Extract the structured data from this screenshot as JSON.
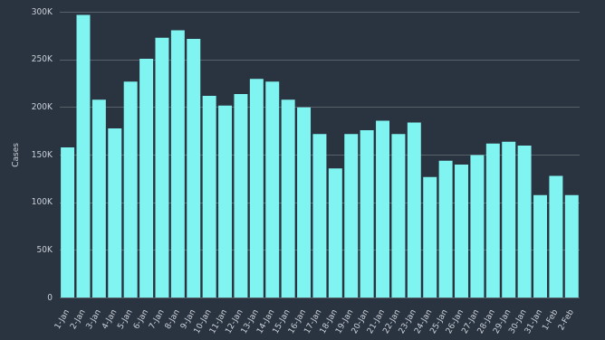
{
  "chart_data": {
    "type": "bar",
    "ylabel": "Cases",
    "categories": [
      "1-Jan",
      "2-Jan",
      "3-Jan",
      "4-Jan",
      "5-Jan",
      "6-Jan",
      "7-Jan",
      "8-Jan",
      "9-Jan",
      "10-Jan",
      "11-Jan",
      "12-Jan",
      "13-Jan",
      "14-Jan",
      "15-Jan",
      "16-Jan",
      "17-Jan",
      "18-Jan",
      "19-Jan",
      "20-Jan",
      "21-Jan",
      "22-Jan",
      "23-Jan",
      "24-Jan",
      "25-Jan",
      "26-Jan",
      "27-Jan",
      "28-Jan",
      "29-Jan",
      "30-Jan",
      "31-Jan",
      "1-Feb",
      "2-Feb"
    ],
    "values": [
      158000,
      297000,
      208000,
      178000,
      227000,
      251000,
      273000,
      281000,
      272000,
      212000,
      202000,
      214000,
      230000,
      227000,
      208000,
      200000,
      172000,
      136000,
      172000,
      176000,
      186000,
      172000,
      184000,
      127000,
      144000,
      140000,
      150000,
      162000,
      164000,
      160000,
      108000,
      128000,
      108000
    ],
    "color": "#80f4f0",
    "ylim": [
      0,
      300000
    ],
    "yticks": [
      0,
      {
        "value": 50000,
        "label": "50K"
      },
      {
        "value": 100000,
        "label": "100K"
      },
      {
        "value": 150000,
        "label": "150K"
      },
      {
        "value": 200000,
        "label": "200K"
      },
      {
        "value": 250000,
        "label": "250K"
      },
      {
        "value": 300000,
        "label": "300K"
      }
    ],
    "grid": true
  }
}
